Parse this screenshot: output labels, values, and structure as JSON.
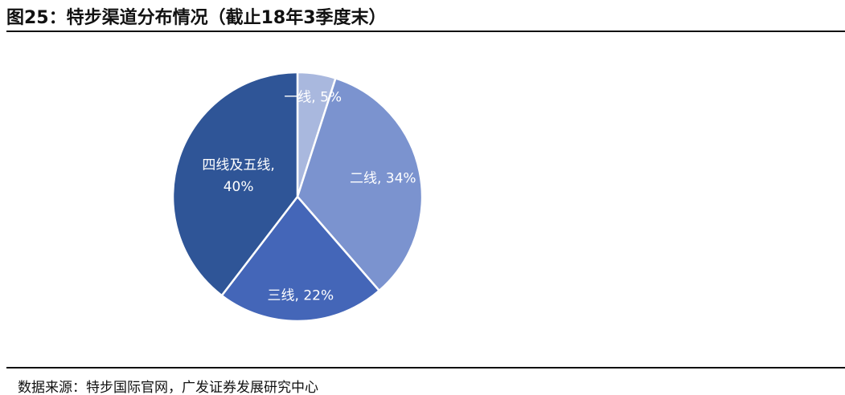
{
  "chart_data": {
    "type": "pie",
    "title": "图25：特步渠道分布情况（截止18年3季度末）",
    "values": [
      5,
      34,
      22,
      40
    ],
    "value_labels": [
      "一线, 5%",
      "二线, 34%",
      "三线, 22%",
      "四线及五线, 40%"
    ],
    "colors": [
      "#a9b8de",
      "#7b93cf",
      "#4466b8",
      "#2f5597"
    ],
    "source": "数据来源：特步国际官网，广发证券发展研究中心"
  }
}
